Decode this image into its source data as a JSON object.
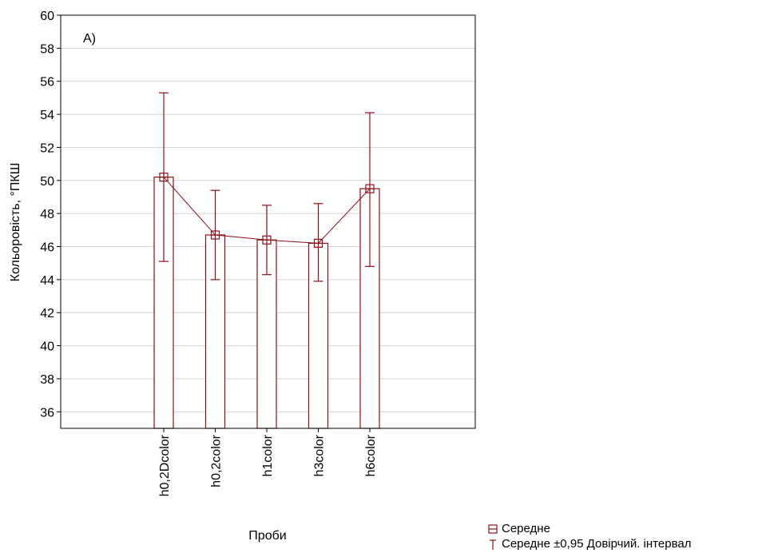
{
  "chart_data": {
    "type": "bar",
    "panel_label": "A)",
    "xlabel": "Проби",
    "ylabel": "Кольоровість, °ПКШ",
    "ylim": [
      35,
      60
    ],
    "yticks": [
      36,
      38,
      40,
      42,
      44,
      46,
      48,
      50,
      52,
      54,
      56,
      58,
      60
    ],
    "categories": [
      "h0,2Dcolor",
      "h0,2color",
      "h1color",
      "h3color",
      "h6color"
    ],
    "series": [
      {
        "name": "Середне",
        "values": [
          50.2,
          46.7,
          46.4,
          46.2,
          49.5
        ],
        "ci_lower": [
          45.1,
          44.0,
          44.3,
          43.9,
          44.8
        ],
        "ci_upper": [
          55.3,
          49.4,
          48.5,
          48.6,
          54.1
        ]
      }
    ],
    "legend": [
      {
        "label": "Середне",
        "marker": "square-marker-icon"
      },
      {
        "label": "Середне ±0,95 Довірчий. інтервал",
        "marker": "errorbar-icon"
      }
    ],
    "legend_position": "bottom-right",
    "grid": true,
    "colors": {
      "marker": "#8b0f17",
      "bar_outline": "#8b0f17",
      "axis": "#000000",
      "grid": "#d4d4d4"
    }
  }
}
